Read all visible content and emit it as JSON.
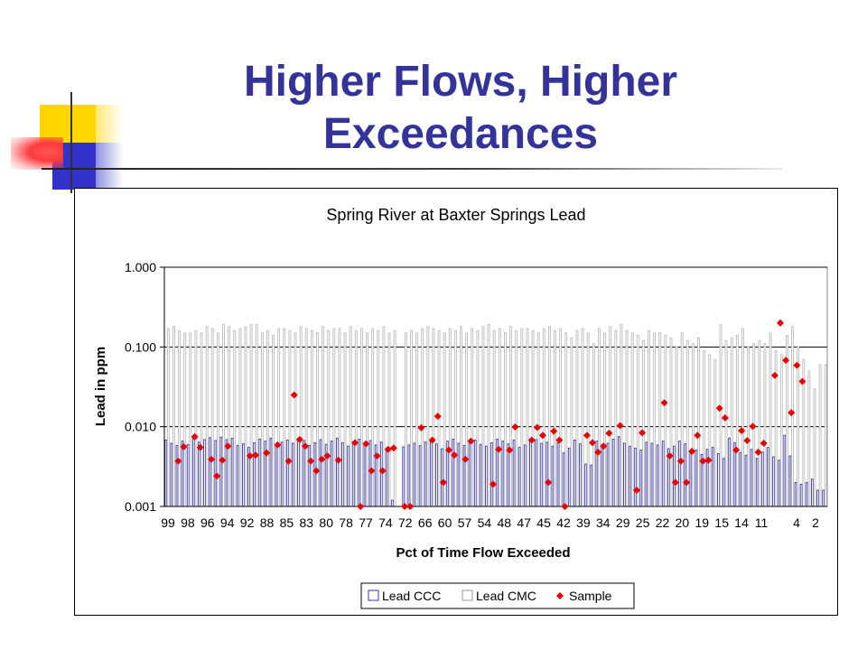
{
  "slide": {
    "title_line1": "Higher Flows, Higher",
    "title_line2": "Exceedances",
    "title_color": "#333399"
  },
  "chart_data": {
    "type": "bar",
    "title": "Spring River at Baxter Springs Lead",
    "xlabel": "Pct of Time Flow Exceeded",
    "ylabel": "Lead in ppm",
    "yscale": "log",
    "ylim": [
      0.001,
      1.0
    ],
    "ytick_labels": [
      "0.001",
      "0.010",
      "0.100",
      "1.000"
    ],
    "xtick_labels": [
      "99",
      "98",
      "96",
      "94",
      "92",
      "88",
      "85",
      "83",
      "80",
      "78",
      "77",
      "74",
      "72",
      "66",
      "60",
      "57",
      "54",
      "48",
      "47",
      "45",
      "42",
      "39",
      "34",
      "29",
      "25",
      "22",
      "20",
      "19",
      "15",
      "14",
      "11",
      "4",
      "2"
    ],
    "grid": true,
    "legend_position": "bottom",
    "series": [
      {
        "name": "Lead CCC",
        "kind": "bar",
        "color": "#3333aa",
        "values": [
          0.0068,
          0.0062,
          0.0058,
          0.0066,
          0.006,
          0.0071,
          0.0064,
          0.0069,
          0.0073,
          0.0067,
          0.0074,
          0.0069,
          0.0072,
          0.0058,
          0.0061,
          0.0055,
          0.0063,
          0.007,
          0.0066,
          0.0072,
          0.0059,
          0.0064,
          0.0068,
          0.0062,
          0.0071,
          0.0067,
          0.0058,
          0.0063,
          0.0069,
          0.006,
          0.0066,
          0.0072,
          0.0063,
          0.0057,
          0.0065,
          0.007,
          0.0062,
          0.0067,
          0.0059,
          0.0064,
          0.005,
          0.0012,
          null,
          0.0056,
          0.0059,
          0.0062,
          0.0058,
          0.0064,
          0.0068,
          0.0061,
          0.0053,
          0.0066,
          0.007,
          0.0062,
          0.0058,
          0.0064,
          0.0068,
          0.006,
          0.0057,
          0.0063,
          0.007,
          0.0066,
          0.0061,
          0.0068,
          0.0055,
          0.0059,
          0.0066,
          0.0069,
          0.0062,
          0.0064,
          0.0057,
          0.0063,
          0.0047,
          0.0054,
          0.0068,
          0.0061,
          0.0034,
          0.0033,
          0.0066,
          0.006,
          0.0062,
          0.007,
          0.0075,
          0.0062,
          0.0057,
          0.0054,
          0.0051,
          0.0064,
          0.0062,
          0.0059,
          0.0066,
          0.0053,
          0.0057,
          0.0066,
          0.0061,
          0.0049,
          0.0051,
          0.0045,
          0.0052,
          0.0055,
          0.0046,
          0.004,
          0.0072,
          0.0063,
          0.0047,
          0.0044,
          0.0052,
          0.004,
          0.0048,
          0.0055,
          0.0042,
          0.0038,
          0.0078,
          0.0043,
          0.002,
          0.0019,
          0.002,
          0.0022,
          0.0016,
          0.0016
        ]
      },
      {
        "name": "Lead CMC",
        "kind": "bar",
        "color": "#bbbbbb",
        "values": [
          0.17,
          0.18,
          0.16,
          0.15,
          0.15,
          0.16,
          0.15,
          0.18,
          0.17,
          0.15,
          0.19,
          0.18,
          0.16,
          0.17,
          0.18,
          0.19,
          0.19,
          0.15,
          0.16,
          0.14,
          0.17,
          0.17,
          0.16,
          0.15,
          0.18,
          0.17,
          0.16,
          0.15,
          0.18,
          0.16,
          0.17,
          0.17,
          0.15,
          0.18,
          0.16,
          0.17,
          0.15,
          0.17,
          0.16,
          0.18,
          0.15,
          0.16,
          null,
          0.15,
          0.16,
          0.15,
          0.17,
          0.18,
          0.17,
          0.16,
          0.15,
          0.17,
          0.16,
          0.18,
          0.15,
          0.17,
          0.16,
          0.18,
          0.19,
          0.16,
          0.17,
          0.15,
          0.18,
          0.16,
          0.17,
          0.17,
          0.16,
          0.15,
          0.17,
          0.18,
          0.16,
          0.17,
          0.15,
          0.13,
          0.16,
          0.17,
          0.15,
          0.11,
          0.17,
          0.15,
          0.18,
          0.16,
          0.19,
          0.16,
          0.15,
          0.14,
          0.12,
          0.16,
          0.15,
          0.15,
          0.14,
          0.13,
          0.1,
          0.15,
          0.12,
          0.11,
          0.13,
          0.09,
          0.08,
          0.07,
          0.19,
          0.12,
          0.13,
          0.14,
          0.17,
          0.1,
          0.11,
          0.12,
          0.11,
          0.15,
          0.09,
          0.08,
          0.14,
          0.18,
          0.1,
          0.07,
          0.05,
          0.03,
          0.06,
          0.06
        ]
      },
      {
        "name": "Sample",
        "kind": "scatter",
        "color": "#e60000",
        "points": [
          [
            2,
            0.0037
          ],
          [
            3,
            0.0056
          ],
          [
            5,
            0.0075
          ],
          [
            6,
            0.0055
          ],
          [
            8,
            0.0039
          ],
          [
            9,
            0.0024
          ],
          [
            10,
            0.0038
          ],
          [
            11,
            0.0057
          ],
          [
            15,
            0.0043
          ],
          [
            16,
            0.0044
          ],
          [
            18,
            0.0047
          ],
          [
            20,
            0.0059
          ],
          [
            22,
            0.0037
          ],
          [
            23,
            0.025
          ],
          [
            24,
            0.0069
          ],
          [
            25,
            0.0057
          ],
          [
            26,
            0.0037
          ],
          [
            27,
            0.0028
          ],
          [
            28,
            0.0039
          ],
          [
            29,
            0.0043
          ],
          [
            31,
            0.0038
          ],
          [
            34,
            0.0063
          ],
          [
            35,
            0.001
          ],
          [
            36,
            0.0061
          ],
          [
            37,
            0.0028
          ],
          [
            38,
            0.0043
          ],
          [
            39,
            0.0028
          ],
          [
            40,
            0.0052
          ],
          [
            41,
            0.0054
          ],
          [
            43,
            0.001
          ],
          [
            44,
            0.001
          ],
          [
            46,
            0.0097
          ],
          [
            48,
            0.0068
          ],
          [
            49,
            0.0135
          ],
          [
            50,
            0.002
          ],
          [
            51,
            0.0051
          ],
          [
            52,
            0.0044
          ],
          [
            54,
            0.0039
          ],
          [
            55,
            0.0066
          ],
          [
            59,
            0.0019
          ],
          [
            60,
            0.0052
          ],
          [
            62,
            0.0051
          ],
          [
            63,
            0.0099
          ],
          [
            66,
            0.0068
          ],
          [
            67,
            0.0098
          ],
          [
            68,
            0.0078
          ],
          [
            69,
            0.002
          ],
          [
            70,
            0.0088
          ],
          [
            71,
            0.0068
          ],
          [
            72,
            0.001
          ],
          [
            76,
            0.0078
          ],
          [
            77,
            0.0063
          ],
          [
            78,
            0.0048
          ],
          [
            79,
            0.0057
          ],
          [
            80,
            0.0083
          ],
          [
            82,
            0.0103
          ],
          [
            85,
            0.0016
          ],
          [
            86,
            0.0084
          ],
          [
            90,
            0.02
          ],
          [
            91,
            0.0043
          ],
          [
            92,
            0.002
          ],
          [
            93,
            0.0037
          ],
          [
            94,
            0.002
          ],
          [
            95,
            0.0049
          ],
          [
            96,
            0.0078
          ],
          [
            97,
            0.0037
          ],
          [
            98,
            0.0038
          ],
          [
            100,
            0.017
          ],
          [
            101,
            0.0129
          ],
          [
            103,
            0.0051
          ],
          [
            104,
            0.0089
          ],
          [
            105,
            0.0067
          ],
          [
            106,
            0.0101
          ],
          [
            107,
            0.0048
          ],
          [
            108,
            0.0062
          ],
          [
            110,
            0.044
          ],
          [
            111,
            0.2
          ],
          [
            112,
            0.068
          ],
          [
            113,
            0.015
          ],
          [
            114,
            0.059
          ],
          [
            115,
            0.037
          ]
        ]
      }
    ]
  }
}
